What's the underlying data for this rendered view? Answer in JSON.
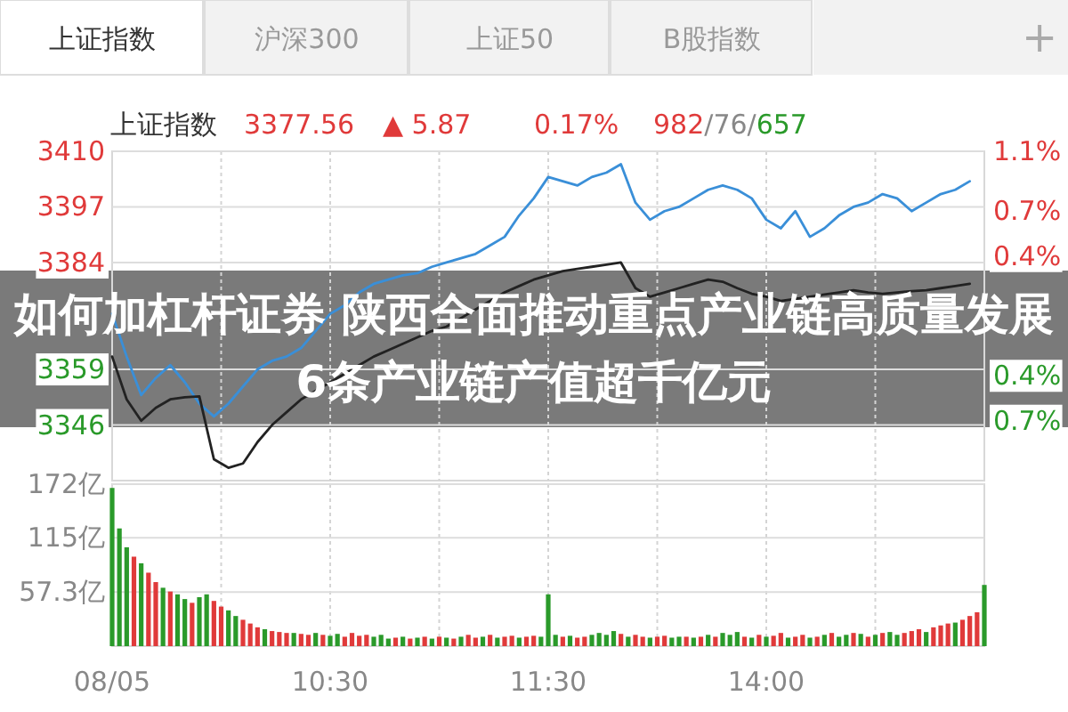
{
  "chart_data": [
    {
      "type": "line",
      "title": "如何加杠杆证券 陕西全面推动重点产业链高质量发展 6条产业链产值超千亿元",
      "annotations": [
        "上证指数",
        "沪深300",
        "上证50",
        "B股指数",
        "+",
        "上证指数",
        "3377.56",
        "▲ 5.87",
        "0.17%",
        "982",
        "/76/",
        "657"
      ],
      "categories": [
        null,
        null,
        null,
        null,
        null,
        null,
        null,
        null,
        null,
        null,
        null,
        null,
        null,
        null,
        null,
        null,
        null,
        null,
        null,
        null,
        null,
        null,
        null,
        null,
        null,
        null,
        null,
        null,
        null,
        null,
        null,
        null,
        null,
        null,
        null,
        null,
        null,
        null,
        null,
        null,
        null,
        null,
        null,
        null,
        null,
        null,
        null,
        null,
        null,
        null,
        null,
        null,
        null,
        null,
        null,
        null,
        null,
        null,
        null,
        null,
        null
      ],
      "ylim": [
        3333,
        3410
      ],
      "yticks": [
        3346,
        3359,
        3384,
        3397,
        3410
      ],
      "y2lim": [
        -1.1,
        1.1
      ],
      "y2ticks": [
        {
          "value": -0.7,
          "label": "0.7%"
        },
        {
          "value": -0.4,
          "label": "0.4%"
        },
        {
          "value": 0.4,
          "label": "0.4%"
        },
        {
          "value": 0.7,
          "label": "0.7%"
        },
        {
          "value": 1.1,
          "label": "1.1%"
        }
      ],
      "grid": true,
      "series": [
        {
          "color": "#3a8fd8",
          "values": [
            3372,
            3362,
            3353,
            3357,
            3360,
            3356,
            3351,
            3348,
            3351,
            3355,
            3359,
            3361,
            3362,
            3364,
            3368,
            3372,
            3374,
            3377,
            3379,
            3380,
            3381,
            3381.5,
            3383,
            3384,
            3385,
            3386,
            3388,
            3390,
            3395,
            3399,
            3404,
            3403,
            3402,
            3404,
            3405,
            3407,
            3398,
            3394,
            3396,
            3397,
            3399,
            3401,
            3402,
            3401,
            3399,
            3394,
            3392,
            3396,
            3390,
            3392,
            3395,
            3397,
            3398,
            3400,
            3399,
            3396,
            3398,
            3400,
            3401,
            3403,
            null
          ]
        },
        {
          "color": "#222222",
          "values": [
            3362,
            3352,
            3347,
            3350,
            3352,
            3352.5,
            3352.7,
            3338,
            3336,
            3337,
            3342,
            3346,
            3349,
            3352,
            3354,
            3356,
            3358,
            3360,
            3362,
            3363.5,
            3365,
            3366.5,
            3368,
            3369,
            3371,
            3373,
            3375,
            3377,
            3378.5,
            3380,
            3381,
            3382,
            3382.5,
            3383,
            3383.5,
            3384,
            3378,
            3376,
            3377,
            3378,
            3379,
            3380,
            3379.5,
            3378,
            3376.7,
            3376,
            3375,
            3375.5,
            3376,
            3376.5,
            3377,
            3377.5,
            3377,
            3376.7,
            3377,
            3377.3,
            3377.5,
            3378,
            3378.5,
            3379,
            null
          ]
        }
      ]
    },
    {
      "type": "bar",
      "categories": [
        "08/05",
        null,
        null,
        null,
        null,
        null,
        null,
        null,
        null,
        null,
        null,
        null,
        null,
        null,
        null,
        null,
        null,
        null,
        null,
        null,
        null,
        null,
        null,
        null,
        null,
        null,
        null,
        null,
        null,
        null,
        "10:30",
        null,
        null,
        null,
        null,
        null,
        null,
        null,
        null,
        null,
        null,
        null,
        null,
        null,
        null,
        null,
        null,
        null,
        null,
        null,
        null,
        null,
        null,
        null,
        null,
        null,
        null,
        null,
        null,
        null,
        "11:30",
        null,
        null,
        null,
        null,
        null,
        null,
        null,
        null,
        null,
        null,
        null,
        null,
        null,
        null,
        null,
        null,
        null,
        null,
        null,
        null,
        null,
        null,
        null,
        null,
        null,
        null,
        null,
        null,
        null,
        "14:00",
        null,
        null,
        null,
        null,
        null,
        null,
        null,
        null,
        null,
        null,
        null,
        null,
        null,
        null,
        null,
        null,
        null,
        null,
        null,
        null,
        null,
        null,
        null,
        null,
        null,
        null,
        null,
        null,
        null,
        null
      ],
      "ylim": [
        0,
        172
      ],
      "yticks": [
        {
          "value": 57.3,
          "label": "57.3亿"
        },
        {
          "value": 115,
          "label": "115亿"
        },
        {
          "value": 172,
          "label": "172亿"
        }
      ],
      "grid": true,
      "values": [
        168,
        125,
        105,
        95,
        88,
        78,
        68,
        62,
        58,
        55,
        50,
        46,
        52,
        55,
        48,
        42,
        38,
        32,
        28,
        24,
        20,
        18,
        16,
        15,
        14,
        14,
        13,
        12,
        14,
        12,
        11,
        13,
        10,
        14,
        11,
        12,
        10,
        12,
        8,
        9,
        10,
        8,
        9,
        10,
        8,
        10,
        9,
        8,
        10,
        12,
        9,
        10,
        12,
        9,
        10,
        11,
        9,
        10,
        11,
        10,
        55,
        12,
        10,
        11,
        9,
        10,
        12,
        14,
        12,
        16,
        13,
        10,
        12,
        10,
        9,
        10,
        11,
        9,
        10,
        10,
        9,
        10,
        12,
        10,
        14,
        12,
        15,
        10,
        9,
        12,
        10,
        11,
        14,
        9,
        10,
        12,
        9,
        10,
        12,
        14,
        10,
        12,
        14,
        13,
        10,
        12,
        14,
        15,
        12,
        14,
        16,
        18,
        15,
        20,
        22,
        24,
        25,
        28,
        32,
        36,
        65
      ],
      "colors": [
        "#2a9a2a",
        "#2a9a2a",
        "#2a9a2a",
        "#e03a3a",
        "#2a9a2a",
        "#e03a3a",
        "#e03a3a",
        "#2a9a2a",
        "#e03a3a",
        "#2a9a2a",
        "#2a9a2a",
        "#e03a3a",
        "#2a9a2a",
        "#2a9a2a",
        "#e03a3a",
        "#e03a3a",
        "#2a9a2a",
        "#2a9a2a",
        "#e03a3a",
        "#e03a3a",
        "#e03a3a",
        "#2a9a2a",
        "#e03a3a",
        "#e03a3a",
        "#e03a3a",
        "#2a9a2a",
        "#e03a3a",
        "#e03a3a",
        "#2a9a2a",
        "#e03a3a",
        "#2a9a2a",
        "#2a9a2a",
        "#e03a3a",
        "#e03a3a",
        "#e03a3a",
        "#e03a3a",
        "#2a9a2a",
        "#2a9a2a",
        "#2a9a2a",
        "#e03a3a",
        "#2a9a2a",
        "#e03a3a",
        "#2a9a2a",
        "#e03a3a",
        "#2a9a2a",
        "#e03a3a",
        "#2a9a2a",
        "#e03a3a",
        "#2a9a2a",
        "#e03a3a",
        "#e03a3a",
        "#2a9a2a",
        "#e03a3a",
        "#2a9a2a",
        "#e03a3a",
        "#e03a3a",
        "#2a9a2a",
        "#e03a3a",
        "#e03a3a",
        "#2a9a2a",
        "#2a9a2a",
        "#2a9a2a",
        "#e03a3a",
        "#2a9a2a",
        "#e03a3a",
        "#e03a3a",
        "#2a9a2a",
        "#2a9a2a",
        "#2a9a2a",
        "#2a9a2a",
        "#e03a3a",
        "#2a9a2a",
        "#e03a3a",
        "#e03a3a",
        "#2a9a2a",
        "#e03a3a",
        "#e03a3a",
        "#2a9a2a",
        "#2a9a2a",
        "#e03a3a",
        "#2a9a2a",
        "#e03a3a",
        "#2a9a2a",
        "#e03a3a",
        "#2a9a2a",
        "#2a9a2a",
        "#2a9a2a",
        "#e03a3a",
        "#2a9a2a",
        "#e03a3a",
        "#2a9a2a",
        "#e03a3a",
        "#e03a3a",
        "#2a9a2a",
        "#e03a3a",
        "#e03a3a",
        "#2a9a2a",
        "#e03a3a",
        "#2a9a2a",
        "#e03a3a",
        "#2a9a2a",
        "#2a9a2a",
        "#e03a3a",
        "#2a9a2a",
        "#e03a3a",
        "#2a9a2a",
        "#e03a3a",
        "#2a9a2a",
        "#2a9a2a",
        "#e03a3a",
        "#e03a3a",
        "#e03a3a",
        "#2a9a2a",
        "#e03a3a",
        "#e03a3a",
        "#e03a3a",
        "#2a9a2a",
        "#e03a3a",
        "#e03a3a",
        "#e03a3a",
        "#2a9a2a"
      ]
    }
  ]
}
